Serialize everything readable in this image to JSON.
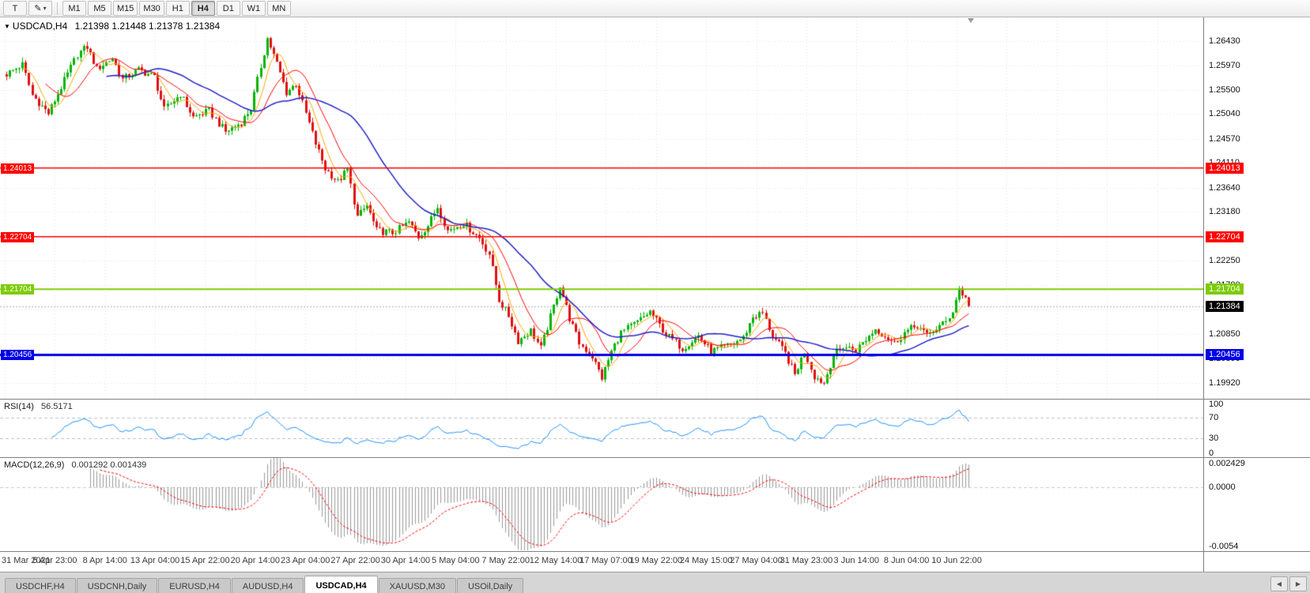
{
  "toolbar": {
    "buttons_left": [
      {
        "label": "T"
      },
      {
        "label": "✎",
        "dropdown": "▾"
      }
    ],
    "timeframes": [
      "M1",
      "M5",
      "M15",
      "M30",
      "H1",
      "H4",
      "D1",
      "W1",
      "MN"
    ],
    "active_timeframe": "H4"
  },
  "chart": {
    "title": {
      "menu_icon": "▼",
      "symbol": "USDCAD,H4",
      "ohlc": "1.21398 1.21448 1.21378 1.21384"
    },
    "price_axis_ticks": [
      "1.26430",
      "1.25970",
      "1.25500",
      "1.25040",
      "1.24570",
      "1.24110",
      "1.23640",
      "1.23180",
      "1.22710",
      "1.22250",
      "1.21790",
      "1.21320",
      "1.20850",
      "1.20390",
      "1.19920"
    ],
    "hlines": [
      {
        "value": 1.24013,
        "label": "1.24013",
        "color": "#FF0000",
        "width": 1.5
      },
      {
        "value": 1.22704,
        "label": "1.22704",
        "color": "#FF0000",
        "width": 1.5
      },
      {
        "value": 1.21704,
        "label": "1.21704",
        "color": "#7CCC00",
        "width": 2
      },
      {
        "value": 1.20456,
        "label": "1.20456",
        "color": "#0000E6",
        "width": 3
      }
    ],
    "current_price": {
      "value": 1.21384,
      "label": "1.21384",
      "bg": "#000000"
    }
  },
  "chart_data": {
    "type": "candlestick",
    "symbol": "USDCAD",
    "timeframe": "H4",
    "candles": 300,
    "ylim": [
      1.1962,
      1.2688
    ],
    "up_color": "#00B400",
    "down_color": "#E01010",
    "noise_amp": 0.0007,
    "wick_amp": 0.0009,
    "anchors": [
      [
        0,
        1.258
      ],
      [
        5,
        1.2598
      ],
      [
        8,
        1.254
      ],
      [
        13,
        1.2505
      ],
      [
        17,
        1.2555
      ],
      [
        22,
        1.2618
      ],
      [
        25,
        1.2632
      ],
      [
        28,
        1.259
      ],
      [
        33,
        1.261
      ],
      [
        36,
        1.257
      ],
      [
        41,
        1.2588
      ],
      [
        46,
        1.2575
      ],
      [
        49,
        1.2512
      ],
      [
        54,
        1.2542
      ],
      [
        58,
        1.2498
      ],
      [
        63,
        1.251
      ],
      [
        68,
        1.247
      ],
      [
        73,
        1.2488
      ],
      [
        76,
        1.2515
      ],
      [
        81,
        1.2648
      ],
      [
        84,
        1.26
      ],
      [
        87,
        1.2545
      ],
      [
        90,
        1.2562
      ],
      [
        93,
        1.2505
      ],
      [
        96,
        1.2448
      ],
      [
        99,
        1.24
      ],
      [
        103,
        1.2375
      ],
      [
        106,
        1.2398
      ],
      [
        109,
        1.2308
      ],
      [
        112,
        1.233
      ],
      [
        115,
        1.2282
      ],
      [
        120,
        1.2278
      ],
      [
        125,
        1.2298
      ],
      [
        128,
        1.227
      ],
      [
        131,
        1.2292
      ],
      [
        134,
        1.2328
      ],
      [
        137,
        1.2282
      ],
      [
        142,
        1.2296
      ],
      [
        147,
        1.2268
      ],
      [
        150,
        1.2238
      ],
      [
        153,
        1.215
      ],
      [
        156,
        1.212
      ],
      [
        159,
        1.2072
      ],
      [
        163,
        1.2092
      ],
      [
        166,
        1.2058
      ],
      [
        169,
        1.2118
      ],
      [
        172,
        1.2178
      ],
      [
        175,
        1.2115
      ],
      [
        178,
        1.2068
      ],
      [
        182,
        1.2042
      ],
      [
        185,
        1.2002
      ],
      [
        188,
        1.2052
      ],
      [
        191,
        1.2088
      ],
      [
        196,
        1.2108
      ],
      [
        200,
        1.2128
      ],
      [
        205,
        1.2085
      ],
      [
        210,
        1.2058
      ],
      [
        215,
        1.2082
      ],
      [
        219,
        1.2052
      ],
      [
        224,
        1.2062
      ],
      [
        229,
        1.2078
      ],
      [
        232,
        1.2118
      ],
      [
        235,
        1.2125
      ],
      [
        238,
        1.2082
      ],
      [
        242,
        1.2048
      ],
      [
        245,
        1.2008
      ],
      [
        248,
        1.2052
      ],
      [
        251,
        1.2005
      ],
      [
        254,
        1.1992
      ],
      [
        257,
        1.2045
      ],
      [
        260,
        1.2062
      ],
      [
        264,
        1.2055
      ],
      [
        267,
        1.2075
      ],
      [
        270,
        1.2095
      ],
      [
        273,
        1.2082
      ],
      [
        276,
        1.2068
      ],
      [
        279,
        1.2088
      ],
      [
        283,
        1.2102
      ],
      [
        286,
        1.2082
      ],
      [
        289,
        1.2096
      ],
      [
        292,
        1.2108
      ],
      [
        294,
        1.213
      ],
      [
        296,
        1.2172
      ],
      [
        298,
        1.2152
      ],
      [
        299,
        1.2138
      ]
    ],
    "ma": [
      {
        "period": 6,
        "color": "#FFA500",
        "width": 1
      },
      {
        "period": 13,
        "color": "#FF0000",
        "width": 1
      },
      {
        "period": 32,
        "color": "#2121CC",
        "width": 1.5
      }
    ],
    "x_labels": [
      "31 Mar 2021",
      "5 Apr 23:00",
      "8 Apr 14:00",
      "13 Apr 04:00",
      "15 Apr 22:00",
      "20 Apr 14:00",
      "23 Apr 04:00",
      "27 Apr 22:00",
      "30 Apr 14:00",
      "5 May 04:00",
      "7 May 22:00",
      "12 May 14:00",
      "17 May 07:00",
      "19 May 22:00",
      "24 May 15:00",
      "27 May 04:00",
      "31 May 23:00",
      "3 Jun 14:00",
      "8 Jun 04:00",
      "10 Jun 22:00"
    ],
    "indicators": {
      "rsi": {
        "name": "RSI(14)",
        "value": "56.5171",
        "period": 14,
        "levels": [
          70,
          30
        ],
        "axis_labels": [
          "100",
          "70",
          "30",
          "0"
        ],
        "color": "#1E90FF",
        "range": [
          0,
          100
        ]
      },
      "macd": {
        "name": "MACD(12,26,9)",
        "values": "0.001292 0.001439",
        "fast": 12,
        "slow": 26,
        "signal_period": 9,
        "axis_labels": [
          "0.002429",
          "0.0000",
          "-0.0054"
        ],
        "range": [
          -0.0056,
          0.0026
        ],
        "histogram_color": "#9A9A9A",
        "signal_color": "#FF0000"
      }
    }
  },
  "tabs": {
    "items": [
      "USDCHF,H4",
      "USDCNH,Daily",
      "EURUSD,H4",
      "AUDUSD,H4",
      "USDCAD,H4",
      "XAUUSD,M30",
      "USOil,Daily"
    ],
    "active_index": 4,
    "prev_label": "◀",
    "next_label": "▶"
  },
  "colors": {
    "background": "#FFFFFF",
    "grid": "#E2E2E2",
    "current_price_line": "#ADADAD"
  }
}
